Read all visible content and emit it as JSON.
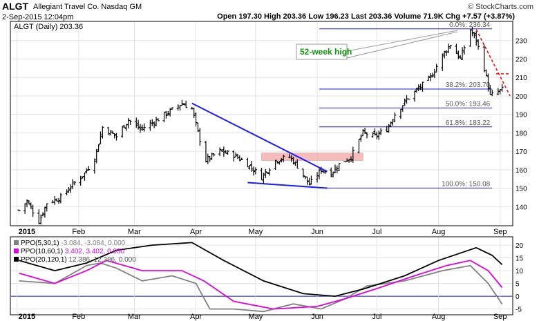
{
  "header": {
    "ticker": "ALGT",
    "company": "Allegiant Travel Co.  Nasdaq GM",
    "copyright": "© StockCharts.com",
    "datetime": "2-Sep-2015 12:04pm",
    "quote": "Open 197.30  High 203.36  Low 196.23  Last 203.36  Volume 71.9K  Chg +7.57 (+3.87%)"
  },
  "price_panel": {
    "legend": "ALGT (Daily) 203.36",
    "annotation": "52-week high"
  },
  "ppo_panel": {
    "legend": [
      {
        "label": "PPO(5,30,1)",
        "values": " -3.084, -3.084, 0.000",
        "color": "#808080"
      },
      {
        "label": "PPO(10,60,1)",
        "values": " 3.402, 3.402, 0.000",
        "color": "#e000e0"
      },
      {
        "label": "PPO(20,120,1)",
        "values": " 12.386, 12.386, 0.000",
        "color": "#000000"
      }
    ]
  },
  "chart_data": [
    {
      "type": "ohlc",
      "title": "ALGT (Daily) 203.36",
      "x_tick_labels": [
        "2015",
        "Feb",
        "Mar",
        "Apr",
        "May",
        "Jun",
        "Jul",
        "Aug",
        "Sep"
      ],
      "ylim": [
        130,
        240
      ],
      "y_ticks": [
        140,
        150,
        160,
        170,
        180,
        190,
        200,
        210,
        220,
        230
      ],
      "grid": true,
      "price_path": [
        {
          "date": "2015-01-02",
          "close": 138
        },
        {
          "date": "2015-01-06",
          "close": 143
        },
        {
          "date": "2015-01-12",
          "close": 132
        },
        {
          "date": "2015-01-16",
          "close": 142
        },
        {
          "date": "2015-01-23",
          "close": 145
        },
        {
          "date": "2015-01-29",
          "close": 152
        },
        {
          "date": "2015-02-04",
          "close": 158
        },
        {
          "date": "2015-02-09",
          "close": 166
        },
        {
          "date": "2015-02-13",
          "close": 183
        },
        {
          "date": "2015-02-20",
          "close": 178
        },
        {
          "date": "2015-02-26",
          "close": 187
        },
        {
          "date": "2015-03-04",
          "close": 182
        },
        {
          "date": "2015-03-11",
          "close": 186
        },
        {
          "date": "2015-03-18",
          "close": 191
        },
        {
          "date": "2015-03-25",
          "close": 196
        },
        {
          "date": "2015-03-30",
          "close": 193
        },
        {
          "date": "2015-04-02",
          "close": 180
        },
        {
          "date": "2015-04-06",
          "close": 165
        },
        {
          "date": "2015-04-13",
          "close": 170
        },
        {
          "date": "2015-04-20",
          "close": 168
        },
        {
          "date": "2015-04-27",
          "close": 163
        },
        {
          "date": "2015-05-04",
          "close": 156
        },
        {
          "date": "2015-05-11",
          "close": 165
        },
        {
          "date": "2015-05-18",
          "close": 167
        },
        {
          "date": "2015-05-22",
          "close": 162
        },
        {
          "date": "2015-05-28",
          "close": 152
        },
        {
          "date": "2015-06-03",
          "close": 160
        },
        {
          "date": "2015-06-08",
          "close": 158
        },
        {
          "date": "2015-06-12",
          "close": 163
        },
        {
          "date": "2015-06-18",
          "close": 167
        },
        {
          "date": "2015-06-24",
          "close": 180
        },
        {
          "date": "2015-06-30",
          "close": 178
        },
        {
          "date": "2015-07-06",
          "close": 182
        },
        {
          "date": "2015-07-10",
          "close": 190
        },
        {
          "date": "2015-07-16",
          "close": 198
        },
        {
          "date": "2015-07-22",
          "close": 204
        },
        {
          "date": "2015-07-28",
          "close": 210
        },
        {
          "date": "2015-08-03",
          "close": 222
        },
        {
          "date": "2015-08-07",
          "close": 228
        },
        {
          "date": "2015-08-12",
          "close": 220
        },
        {
          "date": "2015-08-17",
          "close": 236
        },
        {
          "date": "2015-08-20",
          "close": 230
        },
        {
          "date": "2015-08-24",
          "close": 215
        },
        {
          "date": "2015-08-27",
          "close": 200
        },
        {
          "date": "2015-09-02",
          "close": 203.36
        }
      ],
      "fibonacci": [
        {
          "label": "0.0%: 236.34",
          "price": 236.34
        },
        {
          "label": "38.2%: 203.70",
          "price": 203.7
        },
        {
          "label": "50.0%: 193.46",
          "price": 193.46
        },
        {
          "label": "61.8%: 183.22",
          "price": 183.22
        },
        {
          "label": "100.0%: 150.08",
          "price": 150.08
        }
      ],
      "trendlines": [
        {
          "color": "#1a1aff",
          "from": {
            "date": "2015-03-30",
            "price": 196
          },
          "to": {
            "date": "2015-06-06",
            "price": 159
          }
        },
        {
          "color": "#1a1aff",
          "from": {
            "date": "2015-04-27",
            "price": 153
          },
          "to": {
            "date": "2015-06-06",
            "price": 150
          }
        },
        {
          "color": "#ff0000",
          "dashed": true,
          "from": {
            "date": "2015-08-20",
            "price": 236
          },
          "to": {
            "date": "2015-09-06",
            "price": 200
          }
        },
        {
          "color": "#ff0000",
          "dashed": true,
          "from": {
            "date": "2015-08-30",
            "price": 212
          },
          "to": {
            "date": "2015-09-06",
            "price": 212
          }
        }
      ],
      "highlight_zone": {
        "from": "2015-05-04",
        "to": "2015-06-24",
        "low": 165,
        "high": 169,
        "color": "#f2a6a6"
      }
    },
    {
      "type": "line",
      "title": "PPO",
      "ylim": [
        -7,
        23
      ],
      "y_ticks": [
        -5,
        0,
        5,
        10,
        15,
        20
      ],
      "x_tick_labels": [
        "2015",
        "Feb",
        "Mar",
        "Apr",
        "May",
        "Jun",
        "Jul",
        "Aug",
        "Sep"
      ],
      "series": [
        {
          "name": "PPO(5,30,1)",
          "color": "#808080",
          "points": [
            {
              "date": "2015-01-02",
              "value": 6
            },
            {
              "date": "2015-01-20",
              "value": 5
            },
            {
              "date": "2015-02-05",
              "value": 12
            },
            {
              "date": "2015-02-12",
              "value": 13
            },
            {
              "date": "2015-02-20",
              "value": 11
            },
            {
              "date": "2015-03-05",
              "value": 6
            },
            {
              "date": "2015-03-20",
              "value": 8
            },
            {
              "date": "2015-04-01",
              "value": 5
            },
            {
              "date": "2015-04-08",
              "value": -5
            },
            {
              "date": "2015-04-20",
              "value": -5
            },
            {
              "date": "2015-05-05",
              "value": -6
            },
            {
              "date": "2015-05-20",
              "value": -3
            },
            {
              "date": "2015-06-03",
              "value": -5
            },
            {
              "date": "2015-06-15",
              "value": -1
            },
            {
              "date": "2015-06-26",
              "value": 4
            },
            {
              "date": "2015-07-15",
              "value": 6
            },
            {
              "date": "2015-08-03",
              "value": 10
            },
            {
              "date": "2015-08-17",
              "value": 12
            },
            {
              "date": "2015-08-26",
              "value": 5
            },
            {
              "date": "2015-09-02",
              "value": -3.084
            }
          ]
        },
        {
          "name": "PPO(10,60,1)",
          "color": "#e000e0",
          "points": [
            {
              "date": "2015-01-02",
              "value": 9
            },
            {
              "date": "2015-01-20",
              "value": 5
            },
            {
              "date": "2015-02-05",
              "value": 10
            },
            {
              "date": "2015-02-15",
              "value": 14
            },
            {
              "date": "2015-03-05",
              "value": 10
            },
            {
              "date": "2015-03-25",
              "value": 10
            },
            {
              "date": "2015-04-05",
              "value": 6
            },
            {
              "date": "2015-04-20",
              "value": -2
            },
            {
              "date": "2015-05-10",
              "value": -5
            },
            {
              "date": "2015-06-01",
              "value": -4
            },
            {
              "date": "2015-06-15",
              "value": -1
            },
            {
              "date": "2015-07-01",
              "value": 3
            },
            {
              "date": "2015-07-20",
              "value": 8
            },
            {
              "date": "2015-08-05",
              "value": 12
            },
            {
              "date": "2015-08-17",
              "value": 14
            },
            {
              "date": "2015-08-26",
              "value": 10
            },
            {
              "date": "2015-09-02",
              "value": 3.402
            }
          ]
        },
        {
          "name": "PPO(20,120,1)",
          "color": "#000000",
          "points": [
            {
              "date": "2015-01-02",
              "value": 14
            },
            {
              "date": "2015-01-20",
              "value": 10
            },
            {
              "date": "2015-02-05",
              "value": 13
            },
            {
              "date": "2015-02-20",
              "value": 18
            },
            {
              "date": "2015-03-10",
              "value": 20
            },
            {
              "date": "2015-03-30",
              "value": 21
            },
            {
              "date": "2015-04-15",
              "value": 14
            },
            {
              "date": "2015-05-05",
              "value": 6
            },
            {
              "date": "2015-05-25",
              "value": 1
            },
            {
              "date": "2015-06-10",
              "value": 0
            },
            {
              "date": "2015-06-25",
              "value": 3
            },
            {
              "date": "2015-07-15",
              "value": 8
            },
            {
              "date": "2015-08-01",
              "value": 14
            },
            {
              "date": "2015-08-20",
              "value": 19
            },
            {
              "date": "2015-08-28",
              "value": 16
            },
            {
              "date": "2015-09-02",
              "value": 12.386
            }
          ]
        }
      ]
    }
  ]
}
